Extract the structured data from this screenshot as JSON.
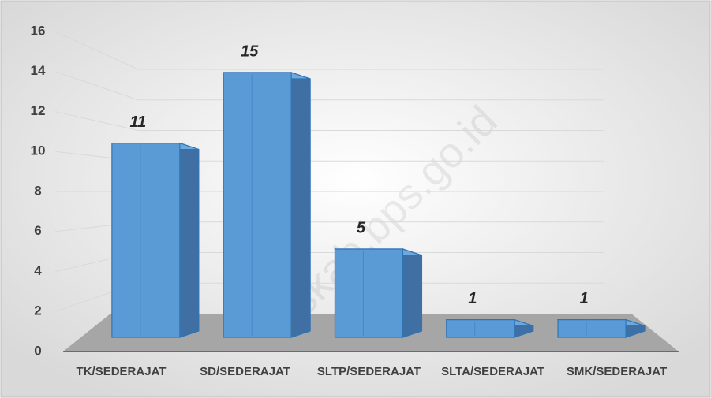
{
  "chart_data": {
    "type": "bar3d",
    "categories": [
      "TK/SEDERAJAT",
      "SD/SEDERAJAT",
      "SLTP/SEDERAJAT",
      "SLTA/SEDERAJAT",
      "SMK/SEDERAJAT"
    ],
    "values": [
      11,
      15,
      5,
      1,
      1
    ],
    "color": "#5b9bd5",
    "ylim": [
      0,
      16
    ],
    "yticks": [
      0,
      2,
      4,
      6,
      8,
      10,
      12,
      14,
      16
    ],
    "grid": true,
    "watermark": "skab.bps.go.id"
  }
}
